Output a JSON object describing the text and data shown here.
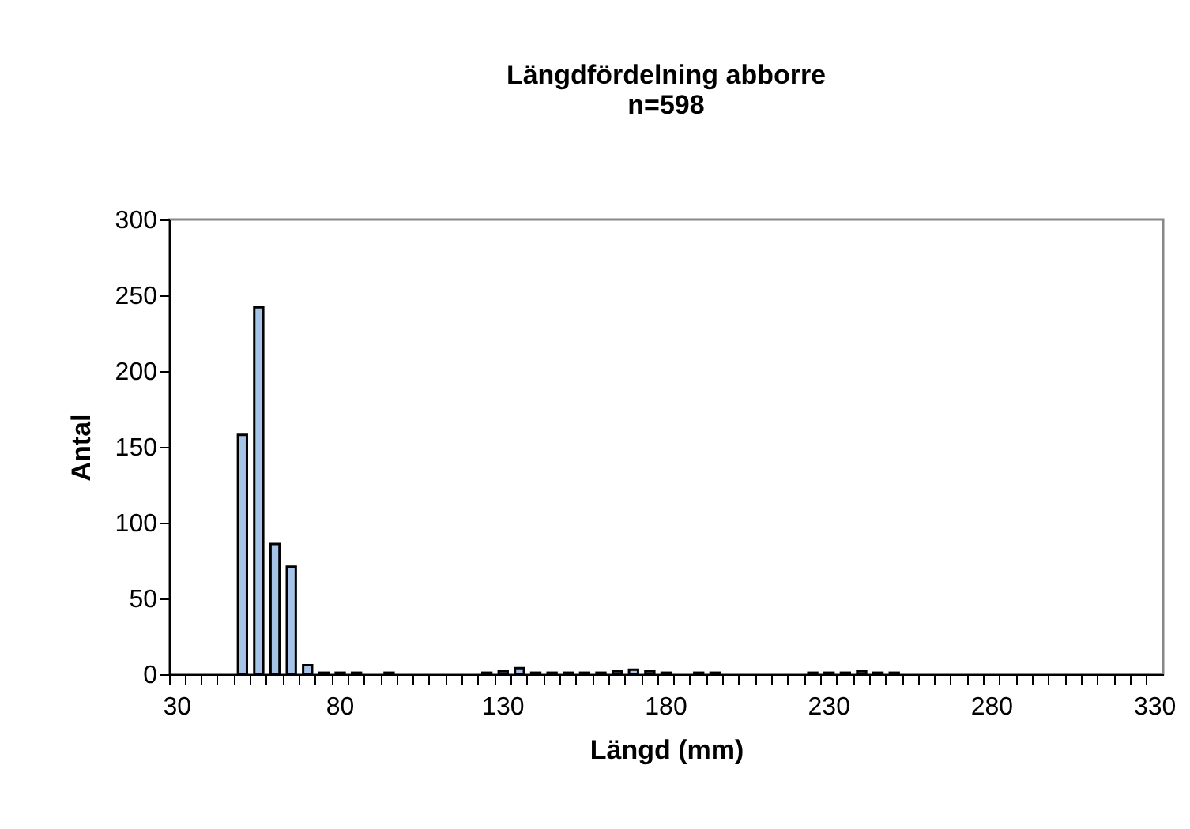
{
  "chart_data": {
    "type": "bar",
    "title": "Längdfördelning abborre",
    "subtitle": "n=598",
    "xlabel": "Längd (mm)",
    "ylabel": "Antal",
    "categories": [
      "30",
      null,
      null,
      null,
      null,
      null,
      null,
      null,
      null,
      null,
      "80",
      null,
      null,
      null,
      null,
      null,
      null,
      null,
      null,
      null,
      "130",
      null,
      null,
      null,
      null,
      null,
      null,
      null,
      null,
      null,
      "180",
      null,
      null,
      null,
      null,
      null,
      null,
      null,
      null,
      null,
      "230",
      null,
      null,
      null,
      null,
      null,
      null,
      null,
      null,
      null,
      "280",
      null,
      null,
      null,
      null,
      null,
      null,
      null,
      null,
      null,
      "330"
    ],
    "values": [
      null,
      null,
      null,
      null,
      158,
      242,
      86,
      71,
      6,
      1,
      1,
      1,
      null,
      1,
      null,
      null,
      null,
      null,
      null,
      1,
      2,
      4,
      1,
      1,
      1,
      1,
      1,
      2,
      3,
      2,
      1,
      null,
      1,
      1,
      null,
      null,
      null,
      null,
      null,
      1,
      1,
      1,
      2,
      1,
      1,
      null,
      null,
      null,
      null,
      null,
      null,
      null,
      null,
      null,
      null,
      null,
      null,
      null,
      null,
      null,
      null
    ],
    "color": "#a6c4e8",
    "ylim": [
      0,
      300
    ],
    "yticks": [
      0,
      50,
      100,
      150,
      200,
      250,
      300
    ]
  }
}
